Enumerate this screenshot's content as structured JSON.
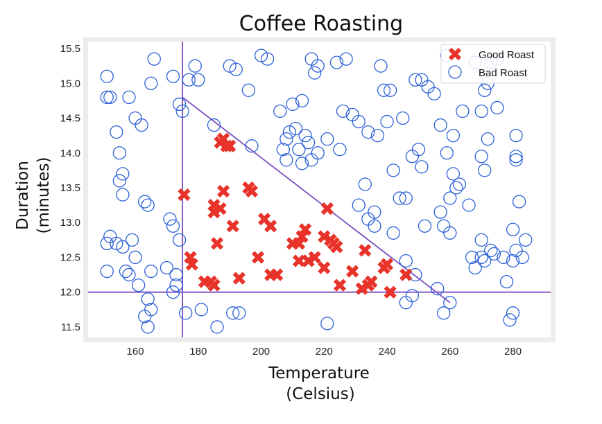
{
  "chart_data": {
    "type": "scatter",
    "title": "Coffee Roasting",
    "xlabel": [
      "Temperature",
      "(Celsius)"
    ],
    "ylabel": [
      "Duration",
      "(minutes)"
    ],
    "xlim": [
      145,
      292
    ],
    "ylim": [
      11.35,
      15.6
    ],
    "xticks": [
      160,
      180,
      200,
      220,
      240,
      260,
      280
    ],
    "yticks": [
      11.5,
      12.0,
      12.5,
      13.0,
      13.5,
      14.0,
      14.5,
      15.0,
      15.5
    ],
    "grid": false,
    "legend_position": "top-right",
    "colors": {
      "good": "#e8332a",
      "bad": "#2a5fd8",
      "lines": "#7a4fc0",
      "frame": "#ececec"
    },
    "decision_lines": [
      {
        "orientation": "vertical",
        "x": 175
      },
      {
        "orientation": "horizontal",
        "y": 12.0
      },
      {
        "orientation": "diagonal",
        "from": [
          175,
          14.8
        ],
        "to": [
          260,
          11.85
        ]
      }
    ],
    "series": [
      {
        "name": "Good Roast",
        "marker": "x",
        "points": [
          [
            175.5,
            13.4
          ],
          [
            177.5,
            12.5
          ],
          [
            178,
            12.4
          ],
          [
            182,
            12.15
          ],
          [
            184,
            12.15
          ],
          [
            185,
            12.1
          ],
          [
            185,
            13.25
          ],
          [
            185,
            13.15
          ],
          [
            186,
            12.7
          ],
          [
            187,
            13.2
          ],
          [
            187,
            14.15
          ],
          [
            188,
            14.2
          ],
          [
            188,
            13.45
          ],
          [
            189,
            14.1
          ],
          [
            190,
            14.1
          ],
          [
            191,
            12.95
          ],
          [
            193,
            12.2
          ],
          [
            196,
            13.5
          ],
          [
            197,
            13.45
          ],
          [
            199,
            12.5
          ],
          [
            201,
            13.05
          ],
          [
            203,
            12.95
          ],
          [
            203,
            12.25
          ],
          [
            205,
            12.25
          ],
          [
            210,
            12.7
          ],
          [
            212,
            12.7
          ],
          [
            212,
            12.45
          ],
          [
            213,
            12.8
          ],
          [
            214,
            12.9
          ],
          [
            215,
            12.45
          ],
          [
            217,
            12.5
          ],
          [
            220,
            12.8
          ],
          [
            220,
            12.35
          ],
          [
            221,
            13.2
          ],
          [
            222,
            12.75
          ],
          [
            223,
            12.7
          ],
          [
            224,
            12.65
          ],
          [
            225,
            12.1
          ],
          [
            229,
            12.3
          ],
          [
            232,
            12.05
          ],
          [
            233,
            12.6
          ],
          [
            234,
            12.1
          ],
          [
            235,
            12.15
          ],
          [
            239,
            12.35
          ],
          [
            240,
            12.4
          ],
          [
            241,
            12.0
          ],
          [
            246,
            12.25
          ]
        ]
      },
      {
        "name": "Bad Roast",
        "marker": "circle",
        "points": [
          [
            151,
            15.1
          ],
          [
            151,
            14.8
          ],
          [
            152,
            14.8
          ],
          [
            154,
            14.3
          ],
          [
            155,
            14.0
          ],
          [
            155,
            13.6
          ],
          [
            156,
            13.7
          ],
          [
            156,
            13.4
          ],
          [
            151,
            12.7
          ],
          [
            152,
            12.8
          ],
          [
            151,
            12.3
          ],
          [
            154,
            12.7
          ],
          [
            156,
            12.65
          ],
          [
            157,
            12.3
          ],
          [
            158,
            12.25
          ],
          [
            159,
            12.75
          ],
          [
            160,
            12.5
          ],
          [
            161,
            12.1
          ],
          [
            163,
            11.65
          ],
          [
            164,
            11.5
          ],
          [
            164,
            11.9
          ],
          [
            165,
            11.75
          ],
          [
            165,
            12.3
          ],
          [
            158,
            14.8
          ],
          [
            160,
            14.5
          ],
          [
            162,
            14.4
          ],
          [
            163,
            13.3
          ],
          [
            164,
            13.25
          ],
          [
            165,
            15.0
          ],
          [
            166,
            15.35
          ],
          [
            170,
            12.35
          ],
          [
            171,
            13.05
          ],
          [
            172,
            12.95
          ],
          [
            173,
            12.25
          ],
          [
            172,
            12.0
          ],
          [
            173,
            12.1
          ],
          [
            174,
            12.75
          ],
          [
            174,
            14.7
          ],
          [
            175,
            14.6
          ],
          [
            172,
            15.1
          ],
          [
            176,
            11.7
          ],
          [
            177,
            15.05
          ],
          [
            179,
            15.25
          ],
          [
            180,
            15.05
          ],
          [
            181,
            11.75
          ],
          [
            185,
            14.4
          ],
          [
            186,
            11.5
          ],
          [
            190,
            15.25
          ],
          [
            191,
            11.7
          ],
          [
            192,
            15.2
          ],
          [
            193,
            11.7
          ],
          [
            196,
            14.9
          ],
          [
            197,
            14.1
          ],
          [
            200,
            15.4
          ],
          [
            202,
            15.35
          ],
          [
            206,
            14.6
          ],
          [
            207,
            14.05
          ],
          [
            208,
            14.2
          ],
          [
            208,
            13.9
          ],
          [
            209,
            14.3
          ],
          [
            210,
            14.7
          ],
          [
            211,
            14.35
          ],
          [
            212,
            14.05
          ],
          [
            213,
            14.75
          ],
          [
            213,
            13.85
          ],
          [
            214,
            14.25
          ],
          [
            215,
            14.15
          ],
          [
            216,
            15.35
          ],
          [
            216,
            13.9
          ],
          [
            217,
            15.15
          ],
          [
            218,
            15.25
          ],
          [
            218,
            14.0
          ],
          [
            221,
            14.2
          ],
          [
            221,
            11.55
          ],
          [
            224,
            15.3
          ],
          [
            225,
            14.05
          ],
          [
            226,
            14.6
          ],
          [
            227,
            15.35
          ],
          [
            229,
            14.55
          ],
          [
            231,
            14.45
          ],
          [
            231,
            13.25
          ],
          [
            233,
            13.55
          ],
          [
            234,
            13.05
          ],
          [
            234,
            14.3
          ],
          [
            236,
            13.15
          ],
          [
            236,
            12.95
          ],
          [
            237,
            14.25
          ],
          [
            238,
            15.25
          ],
          [
            239,
            14.9
          ],
          [
            240,
            14.45
          ],
          [
            241,
            14.9
          ],
          [
            242,
            13.75
          ],
          [
            242,
            12.85
          ],
          [
            244,
            13.35
          ],
          [
            245,
            14.5
          ],
          [
            246,
            13.35
          ],
          [
            246,
            12.45
          ],
          [
            246,
            11.85
          ],
          [
            248,
            11.95
          ],
          [
            248,
            13.95
          ],
          [
            249,
            12.25
          ],
          [
            249,
            15.05
          ],
          [
            250,
            14.05
          ],
          [
            251,
            15.05
          ],
          [
            251,
            13.8
          ],
          [
            252,
            12.95
          ],
          [
            253,
            14.95
          ],
          [
            255,
            14.85
          ],
          [
            256,
            12.05
          ],
          [
            257,
            14.4
          ],
          [
            257,
            13.15
          ],
          [
            258,
            11.7
          ],
          [
            258,
            12.95
          ],
          [
            259,
            15.4
          ],
          [
            259,
            14.0
          ],
          [
            260,
            11.85
          ],
          [
            260,
            13.35
          ],
          [
            260,
            12.85
          ],
          [
            261,
            14.25
          ],
          [
            261,
            13.7
          ],
          [
            262,
            13.5
          ],
          [
            263,
            13.55
          ],
          [
            264,
            14.6
          ],
          [
            266,
            13.25
          ],
          [
            267,
            12.5
          ],
          [
            268,
            12.35
          ],
          [
            268,
            15.3
          ],
          [
            270,
            12.5
          ],
          [
            270,
            12.75
          ],
          [
            270,
            14.6
          ],
          [
            270,
            13.95
          ],
          [
            271,
            13.75
          ],
          [
            271,
            14.9
          ],
          [
            271,
            12.45
          ],
          [
            272,
            15.0
          ],
          [
            272,
            14.2
          ],
          [
            273,
            15.3
          ],
          [
            273,
            12.6
          ],
          [
            274,
            12.55
          ],
          [
            275,
            14.65
          ],
          [
            275,
            15.35
          ],
          [
            277,
            12.5
          ],
          [
            278,
            12.15
          ],
          [
            279,
            11.6
          ],
          [
            280,
            11.7
          ],
          [
            280,
            12.45
          ],
          [
            280,
            12.9
          ],
          [
            281,
            12.6
          ],
          [
            281,
            14.25
          ],
          [
            281,
            13.95
          ],
          [
            281,
            13.9
          ],
          [
            282,
            13.3
          ],
          [
            283,
            12.5
          ],
          [
            284,
            12.75
          ]
        ]
      }
    ]
  }
}
